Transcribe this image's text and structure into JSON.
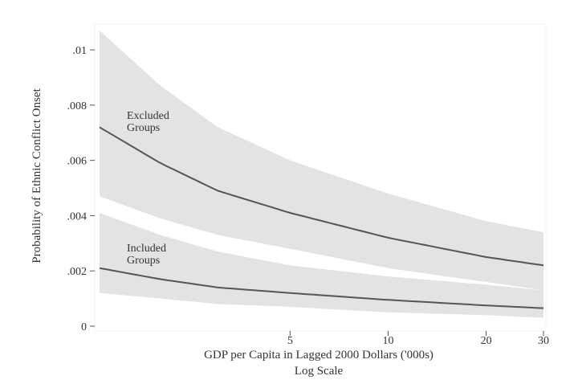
{
  "chart_data": {
    "type": "line",
    "xlabel": "GDP per Capita in Lagged 2000 Dollars ('000s)",
    "xlabel_sub": "Log Scale",
    "ylabel": "Probability of Ethnic Conflict Onset",
    "x_scale": "log",
    "xlim": [
      1.3,
      30
    ],
    "ylim": [
      0,
      0.0107
    ],
    "x_ticks": [
      5,
      10,
      20,
      30
    ],
    "x_tick_labels": [
      "5",
      "10",
      "20",
      "30"
    ],
    "y_ticks": [
      0,
      0.002,
      0.004,
      0.006,
      0.008,
      0.01
    ],
    "y_tick_labels": [
      "0",
      ".002",
      ".004",
      ".006",
      ".008",
      ".01"
    ],
    "grid": false,
    "legend": "none",
    "series": [
      {
        "name": "Excluded Groups",
        "label_lines": [
          "Excluded",
          "Groups"
        ],
        "color": "#555555",
        "band_color": "#e3e3e3",
        "x": [
          1.3,
          2,
          3,
          5,
          10,
          20,
          30
        ],
        "y": [
          0.0072,
          0.0059,
          0.0049,
          0.0041,
          0.0032,
          0.0025,
          0.0022
        ],
        "lower": [
          0.0047,
          0.0039,
          0.0033,
          0.0028,
          0.0021,
          0.0016,
          0.0013
        ],
        "upper": [
          0.0107,
          0.0087,
          0.0072,
          0.006,
          0.0048,
          0.0038,
          0.0034
        ]
      },
      {
        "name": "Included Groups",
        "label_lines": [
          "Included",
          "Groups"
        ],
        "color": "#555555",
        "band_color": "#e3e3e3",
        "x": [
          1.3,
          2,
          3,
          5,
          10,
          20,
          30
        ],
        "y": [
          0.0021,
          0.0017,
          0.0014,
          0.0012,
          0.00095,
          0.00075,
          0.00065
        ],
        "lower": [
          0.0012,
          0.001,
          0.0008,
          0.0007,
          0.0005,
          0.0004,
          0.0003
        ],
        "upper": [
          0.0041,
          0.0033,
          0.0027,
          0.0022,
          0.0018,
          0.0015,
          0.0013
        ]
      }
    ]
  }
}
